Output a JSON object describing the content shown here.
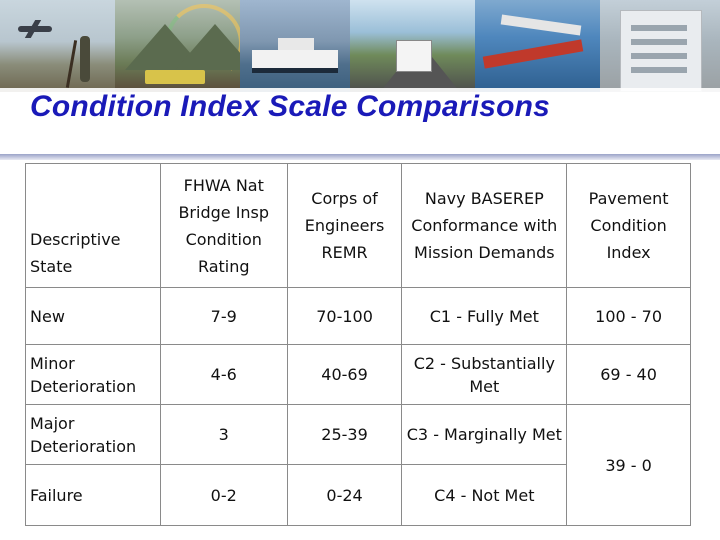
{
  "title": "Condition Index Scale Comparisons",
  "table": {
    "headers": [
      "Descriptive State",
      "FHWA Nat Bridge Insp Condition Rating",
      "Corps of Engineers REMR",
      "Navy BASEREP Conformance with Mission Demands",
      "Pavement Condition Index"
    ],
    "rows": [
      {
        "state": "New",
        "fhwa": "7-9",
        "remr": "70-100",
        "navy": "C1 - Fully Met",
        "pci": "100 - 70"
      },
      {
        "state": "Minor Deterioration",
        "fhwa": "4-6",
        "remr": "40-69",
        "navy": "C2 - Substantially Met",
        "pci": "69 - 40"
      },
      {
        "state": "Major Deterioration",
        "fhwa": "3",
        "remr": "25-39",
        "navy": "C3 - Marginally Met",
        "pci": "39 - 0"
      },
      {
        "state": "Failure",
        "fhwa": "0-2",
        "remr": "0-24",
        "navy": "C4 - Not Met"
      }
    ]
  },
  "banner_photos": [
    "survey-photo",
    "road-work-photo",
    "ferry-photo",
    "truck-highway-photo",
    "aircraft-photo",
    "building-photo"
  ]
}
